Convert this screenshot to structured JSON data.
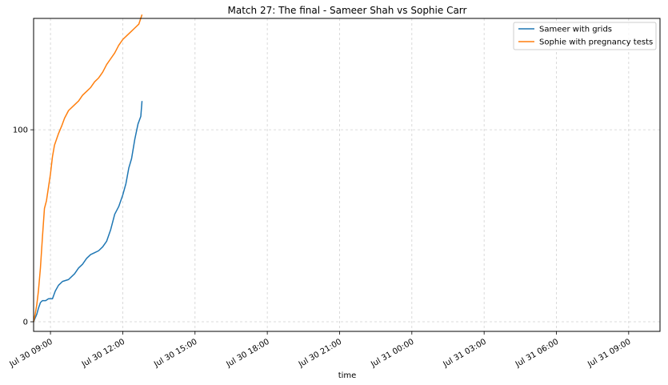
{
  "chart_data": {
    "type": "line",
    "title": "Match 27: The final - Sameer Shah vs Sophie Carr",
    "xlabel": "time",
    "ylabel": "",
    "grid": true,
    "legend_placement": "top-right",
    "x_axis": {
      "type": "time",
      "min": "2023-07-30 08:18",
      "max": "2023-07-31 10:18",
      "tick_labels": [
        "Jul 30 09:00",
        "Jul 30 12:00",
        "Jul 30 15:00",
        "Jul 30 18:00",
        "Jul 30 21:00",
        "Jul 31 00:00",
        "Jul 31 03:00",
        "Jul 31 06:00",
        "Jul 31 09:00"
      ],
      "tick_times": [
        "2023-07-30 09:00",
        "2023-07-30 12:00",
        "2023-07-30 15:00",
        "2023-07-30 18:00",
        "2023-07-30 21:00",
        "2023-07-31 00:00",
        "2023-07-31 03:00",
        "2023-07-31 06:00",
        "2023-07-31 09:00"
      ]
    },
    "y_axis": {
      "min": -5,
      "max": 158,
      "tick_values": [
        0,
        100
      ],
      "tick_labels": [
        "0",
        "100"
      ]
    },
    "series": [
      {
        "name": "Sameer with grids",
        "color": "#1f77b4",
        "points": [
          [
            "2023-07-30 08:18",
            0
          ],
          [
            "2023-07-30 08:22",
            2
          ],
          [
            "2023-07-30 08:26",
            4
          ],
          [
            "2023-07-30 08:30",
            7
          ],
          [
            "2023-07-30 08:35",
            10
          ],
          [
            "2023-07-30 08:40",
            11
          ],
          [
            "2023-07-30 08:48",
            11
          ],
          [
            "2023-07-30 08:55",
            12
          ],
          [
            "2023-07-30 09:05",
            12
          ],
          [
            "2023-07-30 09:12",
            16
          ],
          [
            "2023-07-30 09:20",
            19
          ],
          [
            "2023-07-30 09:30",
            21
          ],
          [
            "2023-07-30 09:45",
            22
          ],
          [
            "2023-07-30 10:00",
            25
          ],
          [
            "2023-07-30 10:10",
            28
          ],
          [
            "2023-07-30 10:20",
            30
          ],
          [
            "2023-07-30 10:30",
            33
          ],
          [
            "2023-07-30 10:40",
            35
          ],
          [
            "2023-07-30 10:50",
            36
          ],
          [
            "2023-07-30 11:00",
            37
          ],
          [
            "2023-07-30 11:10",
            39
          ],
          [
            "2023-07-30 11:20",
            42
          ],
          [
            "2023-07-30 11:30",
            48
          ],
          [
            "2023-07-30 11:40",
            56
          ],
          [
            "2023-07-30 11:50",
            60
          ],
          [
            "2023-07-30 12:00",
            66
          ],
          [
            "2023-07-30 12:08",
            72
          ],
          [
            "2023-07-30 12:15",
            80
          ],
          [
            "2023-07-30 12:22",
            85
          ],
          [
            "2023-07-30 12:30",
            95
          ],
          [
            "2023-07-30 12:38",
            103
          ],
          [
            "2023-07-30 12:45",
            107
          ],
          [
            "2023-07-30 12:48",
            115
          ]
        ]
      },
      {
        "name": "Sophie with pregnancy tests",
        "color": "#ff7f0e",
        "points": [
          [
            "2023-07-30 08:18",
            0
          ],
          [
            "2023-07-30 08:22",
            4
          ],
          [
            "2023-07-30 08:26",
            9
          ],
          [
            "2023-07-30 08:30",
            16
          ],
          [
            "2023-07-30 08:35",
            28
          ],
          [
            "2023-07-30 08:40",
            44
          ],
          [
            "2023-07-30 08:45",
            59
          ],
          [
            "2023-07-30 08:50",
            63
          ],
          [
            "2023-07-30 08:55",
            70
          ],
          [
            "2023-07-30 09:00",
            77
          ],
          [
            "2023-07-30 09:05",
            86
          ],
          [
            "2023-07-30 09:10",
            92
          ],
          [
            "2023-07-30 09:15",
            95
          ],
          [
            "2023-07-30 09:20",
            98
          ],
          [
            "2023-07-30 09:28",
            102
          ],
          [
            "2023-07-30 09:35",
            106
          ],
          [
            "2023-07-30 09:45",
            110
          ],
          [
            "2023-07-30 10:00",
            113
          ],
          [
            "2023-07-30 10:10",
            115
          ],
          [
            "2023-07-30 10:20",
            118
          ],
          [
            "2023-07-30 10:30",
            120
          ],
          [
            "2023-07-30 10:40",
            122
          ],
          [
            "2023-07-30 10:50",
            125
          ],
          [
            "2023-07-30 11:00",
            127
          ],
          [
            "2023-07-30 11:10",
            130
          ],
          [
            "2023-07-30 11:20",
            134
          ],
          [
            "2023-07-30 11:30",
            137
          ],
          [
            "2023-07-30 11:40",
            140
          ],
          [
            "2023-07-30 11:50",
            144
          ],
          [
            "2023-07-30 12:00",
            147
          ],
          [
            "2023-07-30 12:10",
            149
          ],
          [
            "2023-07-30 12:20",
            151
          ],
          [
            "2023-07-30 12:30",
            153
          ],
          [
            "2023-07-30 12:40",
            155
          ],
          [
            "2023-07-30 12:48",
            160
          ]
        ]
      }
    ]
  }
}
